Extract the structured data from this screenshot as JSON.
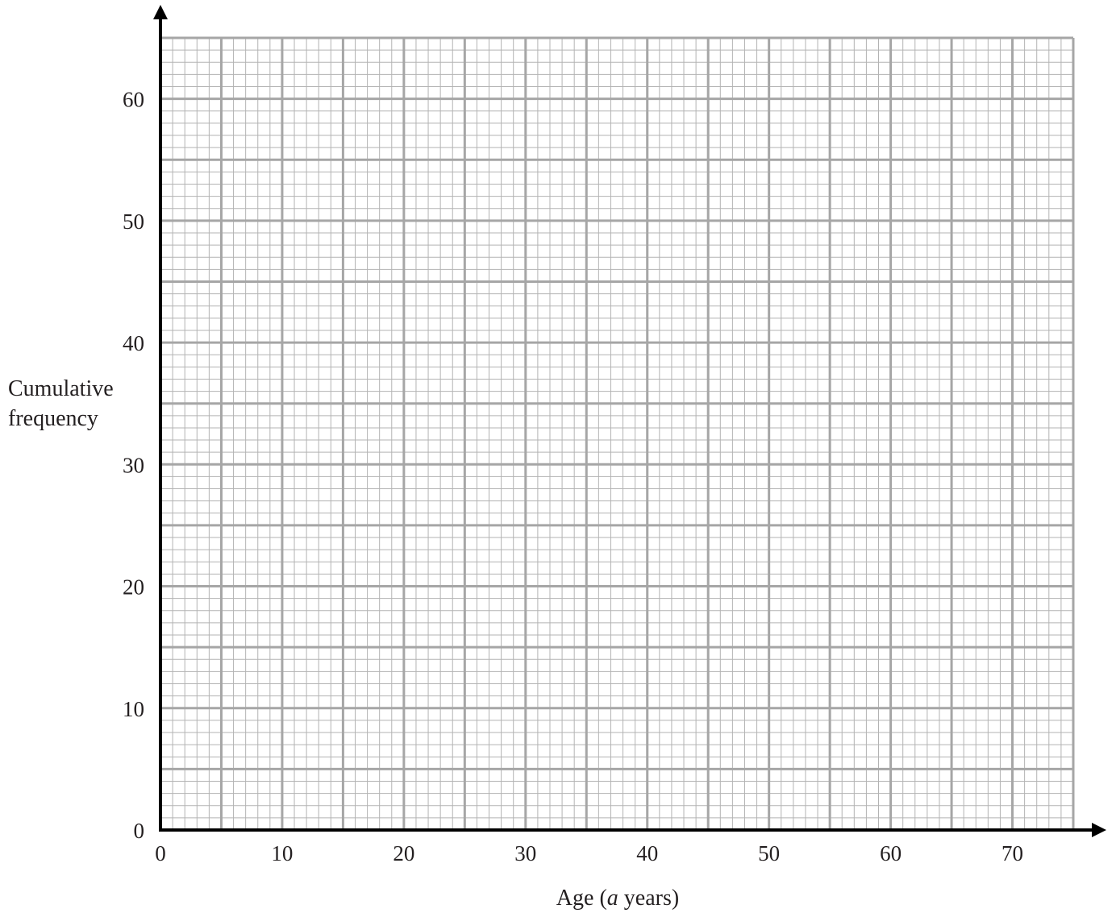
{
  "chart_data": {
    "type": "line",
    "title": "",
    "xlabel_prefix": "Age (",
    "xlabel_var": "a",
    "xlabel_suffix": " years)",
    "ylabel_lines": [
      "Cumulative",
      "frequency"
    ],
    "xlim": [
      0,
      75
    ],
    "ylim": [
      0,
      65
    ],
    "x_ticks": [
      0,
      10,
      20,
      30,
      40,
      50,
      60,
      70
    ],
    "y_ticks": [
      0,
      10,
      20,
      30,
      40,
      50,
      60
    ],
    "grid": true,
    "grid_minor_x": 1,
    "grid_minor_y": 1,
    "grid_mid_x": 5,
    "grid_mid_y": 5,
    "series": [],
    "colors": {
      "axis": "#000000",
      "grid_minor": "#b3b3b3",
      "grid_major": "#a6a6a6",
      "text": "#231f20"
    }
  }
}
